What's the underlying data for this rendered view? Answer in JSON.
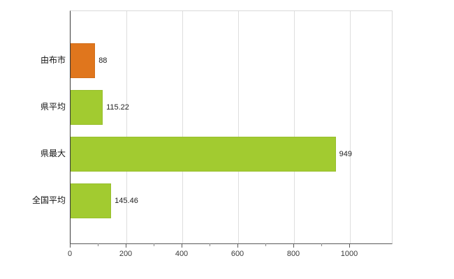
{
  "chart_data": {
    "type": "bar",
    "orientation": "horizontal",
    "title": "",
    "xlabel": "",
    "ylabel": "",
    "categories": [
      "由布市",
      "県平均",
      "県最大",
      "全国平均"
    ],
    "values": [
      88,
      115.22,
      949,
      145.46
    ],
    "value_labels": [
      "88",
      "115.22",
      "949",
      "145.46"
    ],
    "bar_colors": [
      "#e0761d",
      "#a2cb30",
      "#a2cb30",
      "#a2cb30"
    ],
    "xlim": [
      0,
      1150
    ],
    "x_ticks": [
      0,
      200,
      400,
      600,
      800,
      1000
    ],
    "x_minor_tick_step": 100,
    "grid": "vertical-major",
    "legend_position": "none",
    "background_color": "#ffffff",
    "axis_color": "#5a5a5a"
  }
}
